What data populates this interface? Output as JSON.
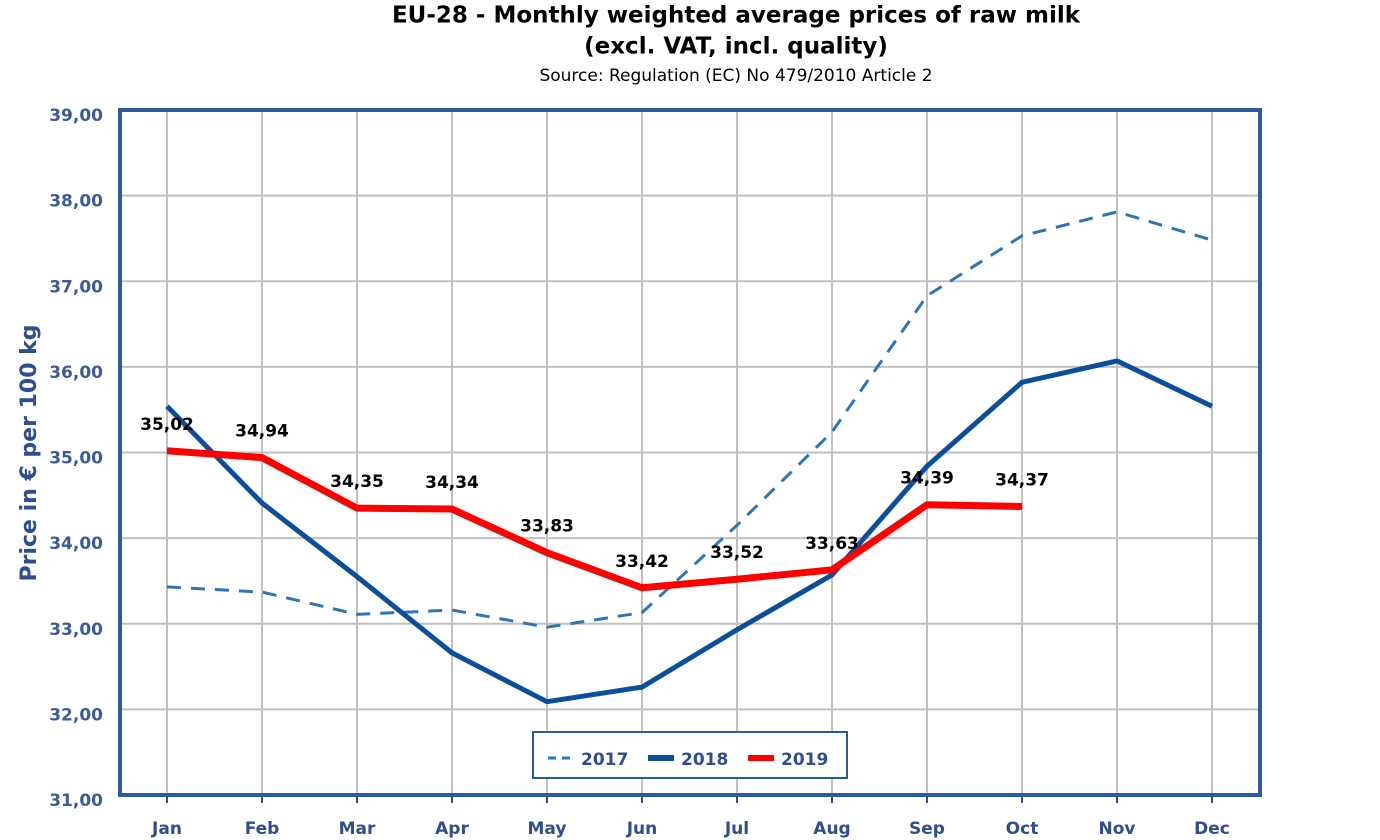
{
  "chart_data": {
    "type": "line",
    "title": "EU-28 - Monthly weighted average prices of raw milk",
    "subtitle": "(excl. VAT, incl. quality)",
    "source": "Source: Regulation (EC) No 479/2010 Article 2",
    "y_label": "Price in € per 100 kg",
    "categories": [
      "Jan",
      "Feb",
      "Mar",
      "Apr",
      "May",
      "Jun",
      "Jul",
      "Aug",
      "Sep",
      "Oct",
      "Nov",
      "Dec"
    ],
    "series": [
      {
        "name": "2017",
        "color": "#2e75b6",
        "dashed": true,
        "values": [
          33.43,
          33.37,
          33.11,
          33.16,
          32.96,
          33.13,
          34.15,
          35.24,
          36.83,
          37.53,
          37.81,
          37.48
        ]
      },
      {
        "name": "2018",
        "color": "#0b4f9c",
        "values": [
          35.54,
          34.41,
          33.55,
          32.66,
          32.09,
          32.26,
          32.93,
          33.57,
          34.84,
          35.82,
          36.07,
          35.54
        ]
      },
      {
        "name": "2019",
        "color": "#ff0000",
        "values": [
          35.02,
          34.94,
          34.35,
          34.34,
          33.83,
          33.42,
          33.52,
          33.63,
          34.39,
          34.37,
          null,
          null
        ],
        "value_labels": [
          "35,02",
          "34,94",
          "34,35",
          "34,34",
          "33,83",
          "33,42",
          "33,52",
          "33,63",
          "34,39",
          "34,37",
          null,
          null
        ]
      }
    ],
    "ylim": [
      31,
      39
    ],
    "yticks": [
      {
        "value": 31,
        "label": "31,00"
      },
      {
        "value": 32,
        "label": "32,00"
      },
      {
        "value": 33,
        "label": "33,00"
      },
      {
        "value": 34,
        "label": "34,00"
      },
      {
        "value": 35,
        "label": "35,00"
      },
      {
        "value": 36,
        "label": "36,00"
      },
      {
        "value": 37,
        "label": "37,00"
      },
      {
        "value": 38,
        "label": "38,00"
      },
      {
        "value": 39,
        "label": "39,00"
      }
    ],
    "grid": true,
    "legend": "bottom"
  }
}
